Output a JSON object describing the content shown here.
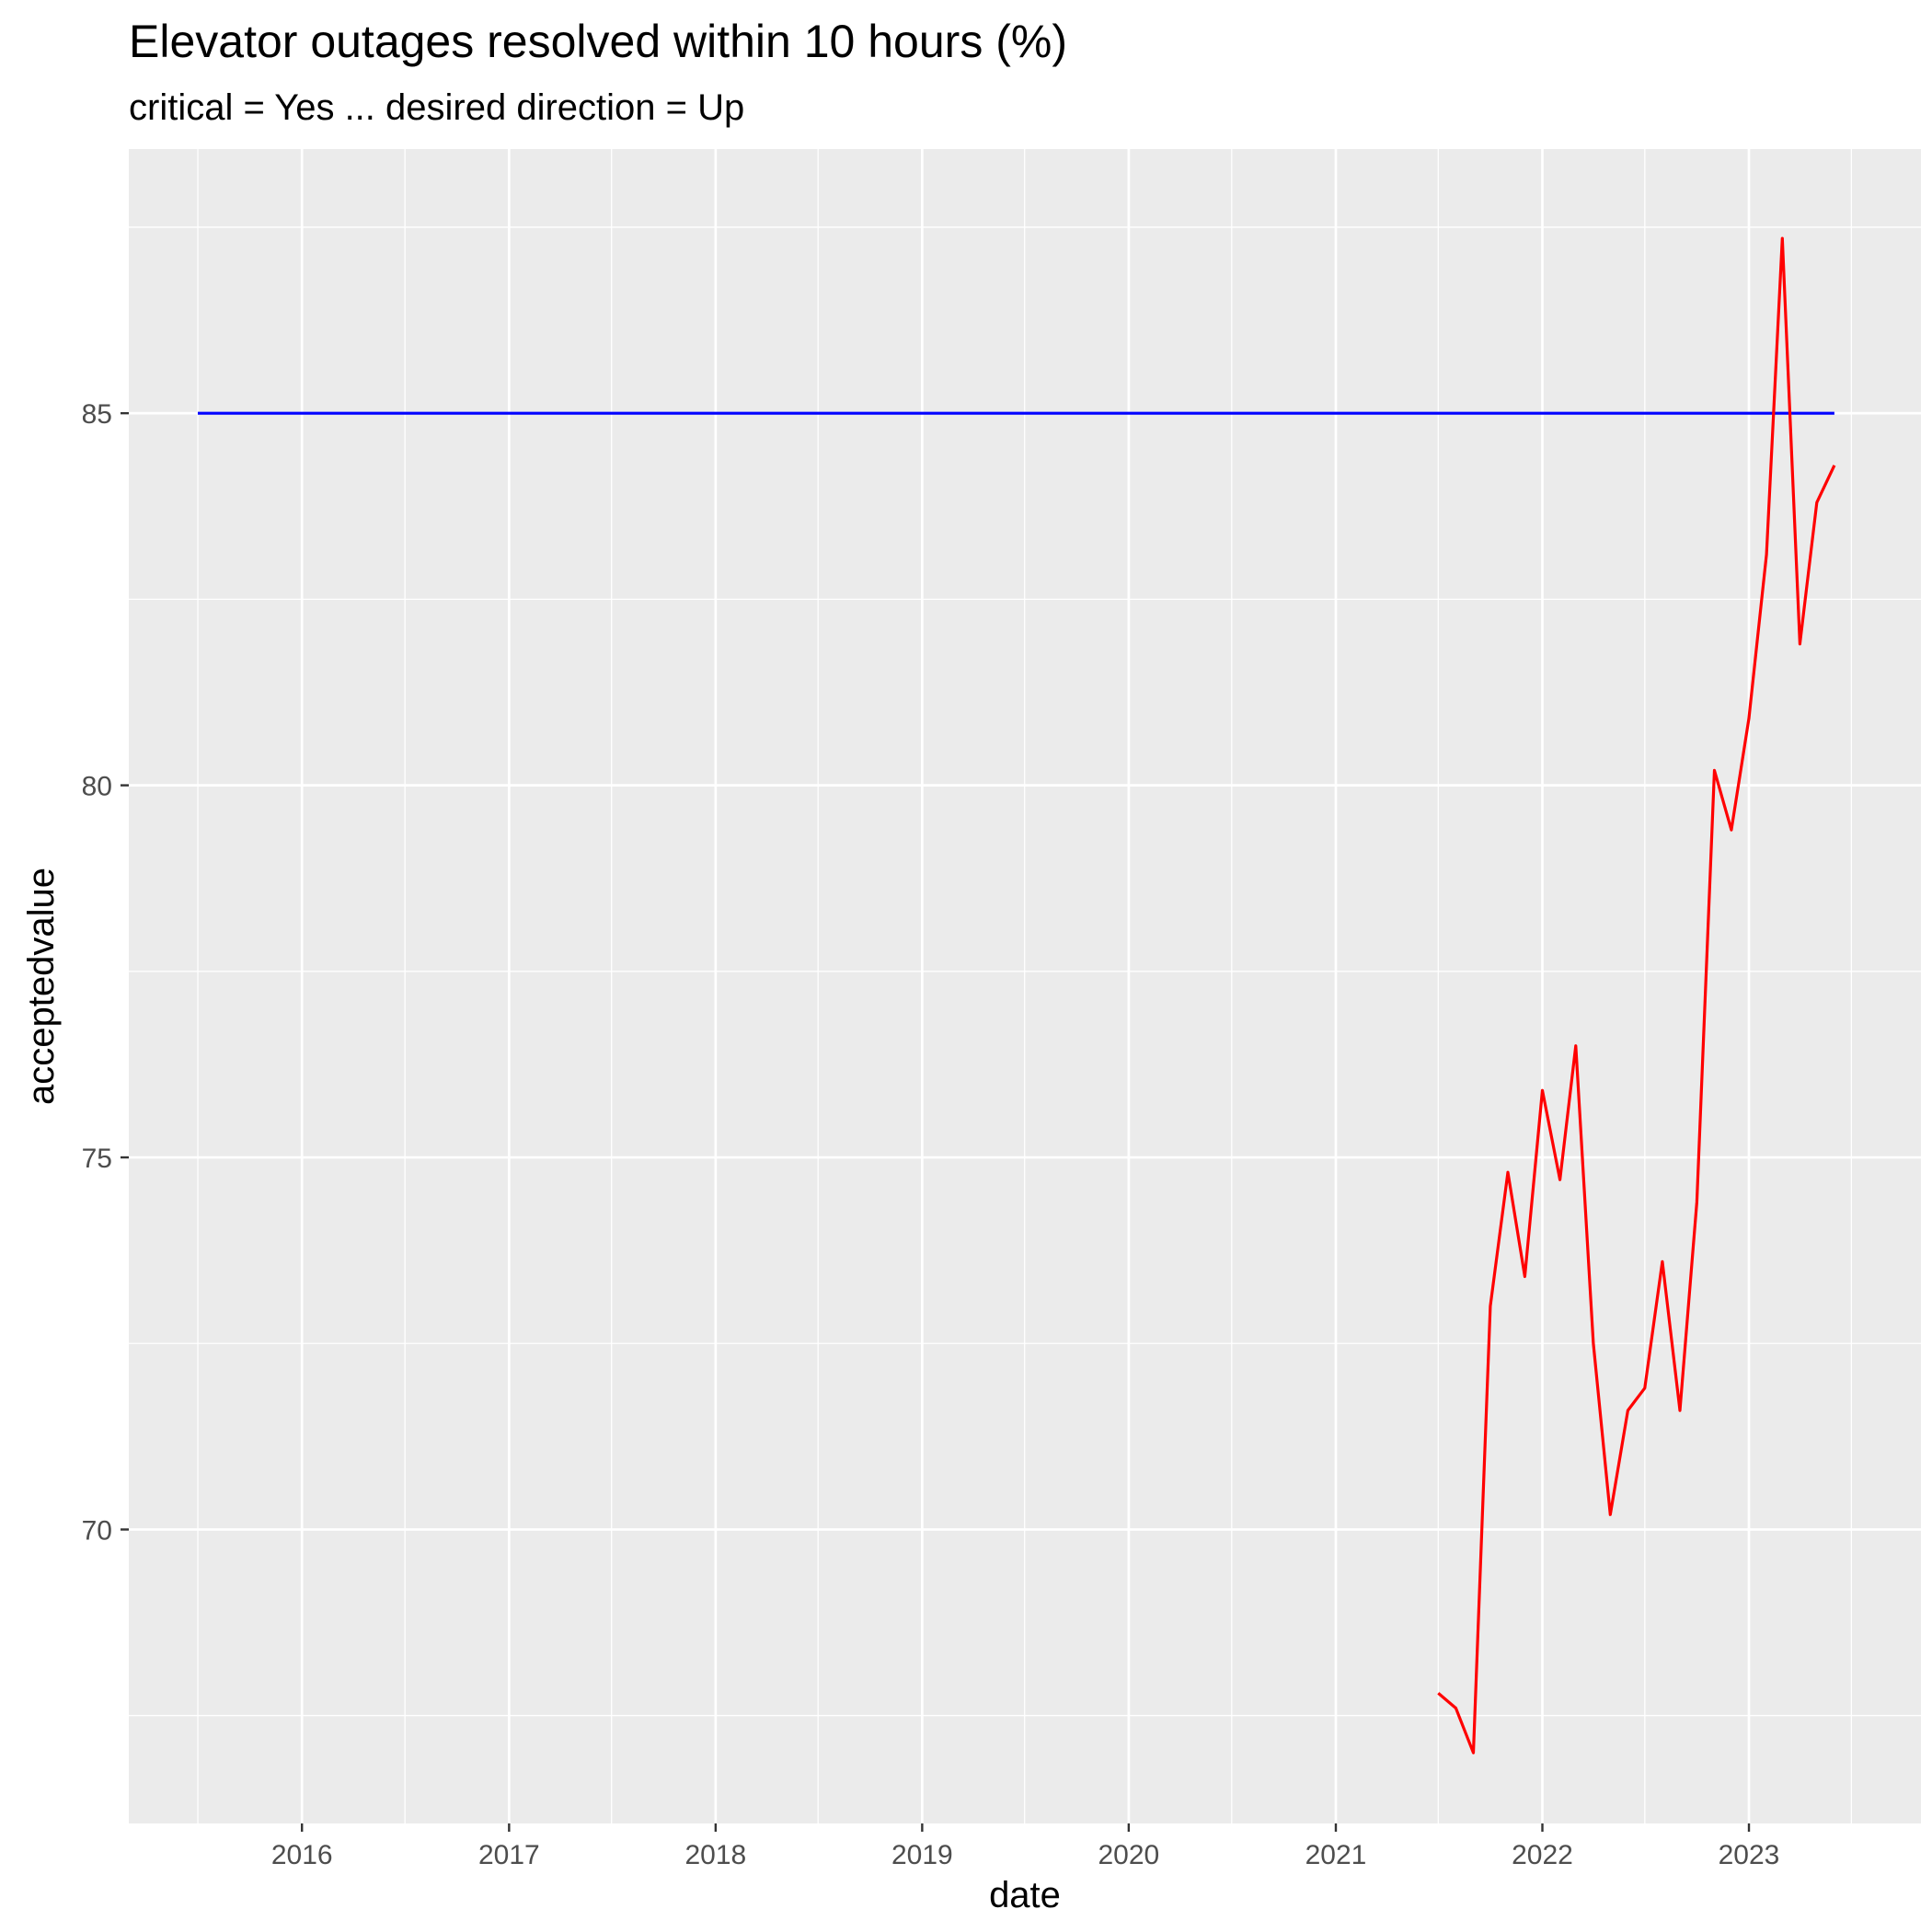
{
  "chart_data": {
    "type": "line",
    "title": "Elevator outages resolved within 10 hours (%)",
    "subtitle": "critical = Yes ... desired direction = Up",
    "xlabel": "date",
    "ylabel": "acceptedvalue",
    "x_type": "date",
    "xlim": [
      "2015-03-01",
      "2023-11-01"
    ],
    "ylim": [
      66.05,
      88.55
    ],
    "x_ticks": [
      {
        "value": "2016-01-01",
        "label": "2016"
      },
      {
        "value": "2017-01-01",
        "label": "2017"
      },
      {
        "value": "2018-01-01",
        "label": "2018"
      },
      {
        "value": "2019-01-01",
        "label": "2019"
      },
      {
        "value": "2020-01-01",
        "label": "2020"
      },
      {
        "value": "2021-01-01",
        "label": "2021"
      },
      {
        "value": "2022-01-01",
        "label": "2022"
      },
      {
        "value": "2023-01-01",
        "label": "2023"
      }
    ],
    "x_minor_ticks": [
      "2015-07-01",
      "2016-07-01",
      "2017-07-01",
      "2018-07-01",
      "2019-07-01",
      "2020-07-01",
      "2021-07-01",
      "2022-07-01",
      "2023-07-01"
    ],
    "y_ticks": [
      70,
      75,
      80,
      85
    ],
    "y_minor_ticks": [
      67.5,
      72.5,
      77.5,
      82.5,
      87.5
    ],
    "grid": true,
    "background_color": "#EBEBEB",
    "grid_color": "#FFFFFF",
    "series": [
      {
        "color": "#0000FF",
        "points": [
          {
            "x": "2015-07-01",
            "y": 85
          },
          {
            "x": "2023-06-01",
            "y": 85
          }
        ]
      },
      {
        "color": "#FF0000",
        "points": [
          {
            "x": "2021-07-01",
            "y": 67.8
          },
          {
            "x": "2021-08-01",
            "y": 67.6
          },
          {
            "x": "2021-09-01",
            "y": 67.0
          },
          {
            "x": "2021-10-01",
            "y": 73.0
          },
          {
            "x": "2021-11-01",
            "y": 74.8
          },
          {
            "x": "2021-12-01",
            "y": 73.4
          },
          {
            "x": "2022-01-01",
            "y": 75.9
          },
          {
            "x": "2022-02-01",
            "y": 74.7
          },
          {
            "x": "2022-03-01",
            "y": 76.5
          },
          {
            "x": "2022-04-01",
            "y": 72.5
          },
          {
            "x": "2022-05-01",
            "y": 70.2
          },
          {
            "x": "2022-06-01",
            "y": 71.6
          },
          {
            "x": "2022-07-01",
            "y": 71.9
          },
          {
            "x": "2022-08-01",
            "y": 73.6
          },
          {
            "x": "2022-09-01",
            "y": 71.6
          },
          {
            "x": "2022-10-01",
            "y": 74.4
          },
          {
            "x": "2022-11-01",
            "y": 80.2
          },
          {
            "x": "2022-12-01",
            "y": 79.4
          },
          {
            "x": "2023-01-01",
            "y": 80.9
          },
          {
            "x": "2023-02-01",
            "y": 83.1
          },
          {
            "x": "2023-03-01",
            "y": 87.35
          },
          {
            "x": "2023-04-01",
            "y": 81.9
          },
          {
            "x": "2023-05-01",
            "y": 83.8
          },
          {
            "x": "2023-06-01",
            "y": 84.3
          }
        ]
      }
    ]
  }
}
